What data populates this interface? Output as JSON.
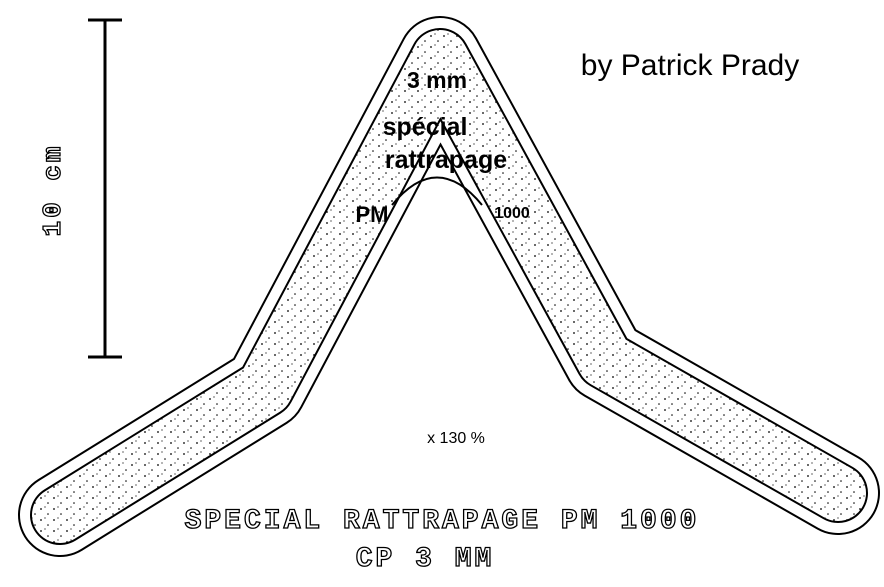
{
  "author": "by Patrick Prady",
  "scale": {
    "label": "10 cm"
  },
  "labels": {
    "thickness": "3 mm",
    "line1": "spécial",
    "line2": "rattrapage",
    "left": "PM",
    "right": "1000",
    "zoom": "x 130 %"
  },
  "footer": {
    "line1": "SPECIAL RATTRAPAGE PM 1000",
    "line2": "CP 3 MM"
  }
}
